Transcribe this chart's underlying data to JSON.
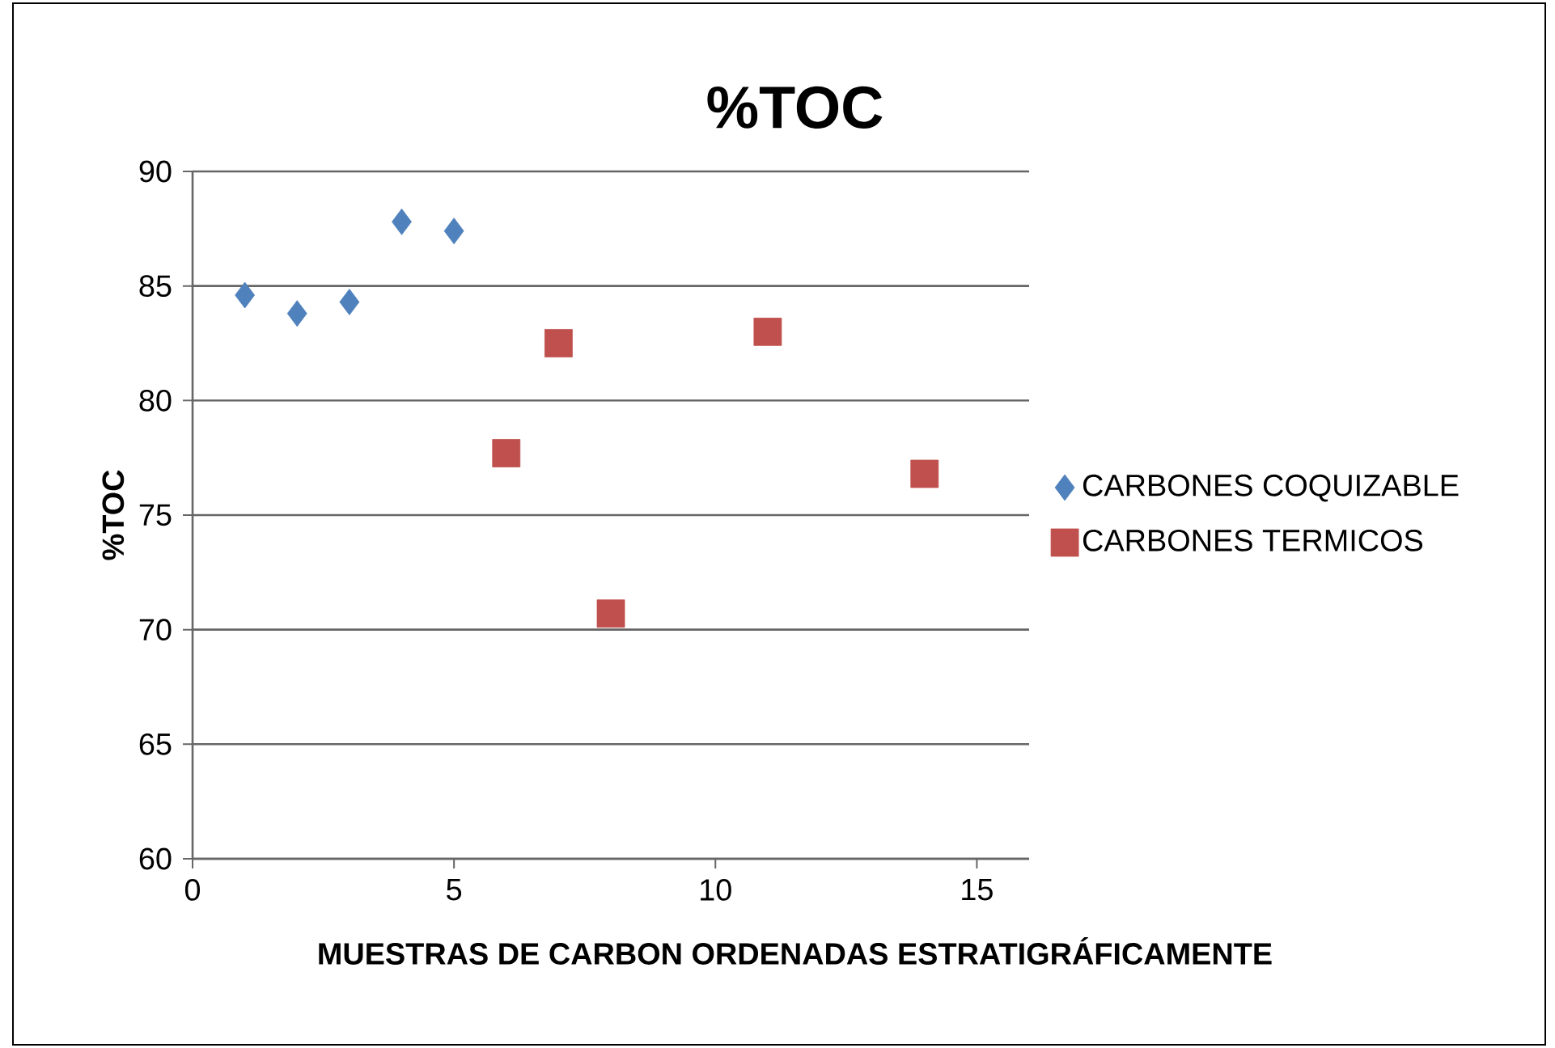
{
  "chart_data": {
    "type": "scatter",
    "title": "%TOC",
    "xlabel": "MUESTRAS DE CARBON ORDENADAS ESTRATIGRÁFICAMENTE",
    "ylabel": "%TOC",
    "xlim": [
      0,
      16
    ],
    "xticks": [
      0,
      5,
      10,
      15
    ],
    "ylim": [
      60,
      90
    ],
    "yticks": [
      60,
      65,
      70,
      75,
      80,
      85,
      90
    ],
    "grid": "y",
    "legend": "right",
    "series": [
      {
        "name": "CARBONES COQUIZABLE",
        "color": "#4f81bd",
        "marker": "diamond",
        "x": [
          1,
          2,
          3,
          4,
          5
        ],
        "values": [
          84.6,
          83.8,
          84.3,
          87.8,
          87.4
        ]
      },
      {
        "name": "CARBONES TERMICOS",
        "color": "#c0504d",
        "marker": "square",
        "x": [
          6,
          7,
          8,
          11,
          14
        ],
        "values": [
          77.7,
          82.5,
          70.7,
          83.0,
          76.8
        ]
      }
    ]
  }
}
